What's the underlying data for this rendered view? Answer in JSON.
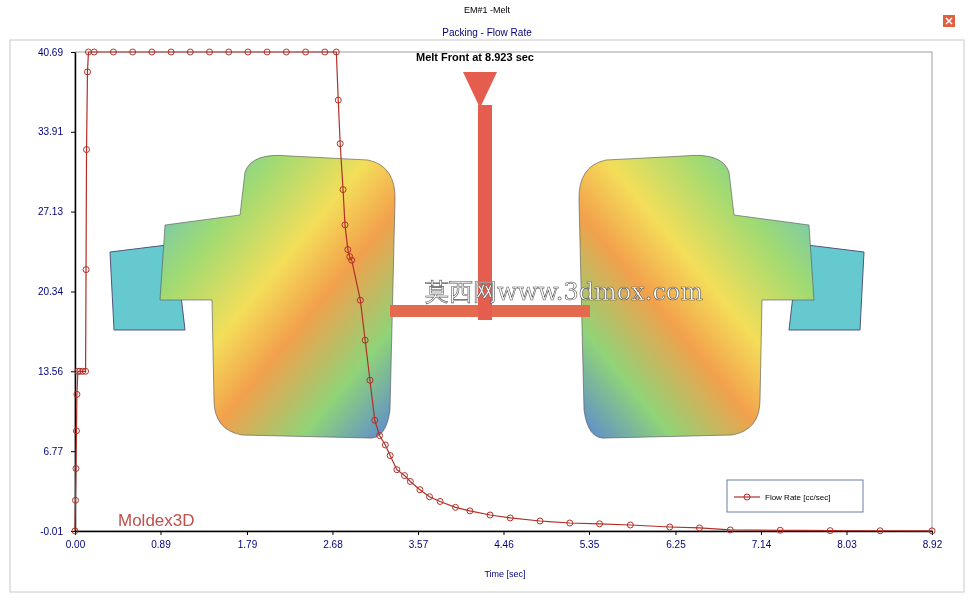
{
  "chart_data": {
    "type": "line",
    "subtitle": "EM#1 -Melt",
    "title": "Packing - Flow Rate",
    "x_label": "Time [sec]",
    "annotations": [
      "Melt Front at 8.923 sec",
      "Moldex3D",
      "莫西网www.3dmox.com"
    ],
    "x": [
      0.0,
      0.005,
      0.01,
      0.015,
      0.02,
      0.03,
      0.05,
      0.08,
      0.11,
      0.115,
      0.12,
      0.13,
      0.14,
      0.2,
      0.4,
      0.6,
      0.8,
      1.0,
      1.2,
      1.4,
      1.6,
      1.8,
      2.0,
      2.2,
      2.4,
      2.6,
      2.72,
      2.74,
      2.76,
      2.79,
      2.81,
      2.84,
      2.86,
      2.88,
      2.97,
      3.02,
      3.07,
      3.12,
      3.17,
      3.23,
      3.28,
      3.35,
      3.43,
      3.49,
      3.59,
      3.69,
      3.8,
      3.96,
      4.11,
      4.32,
      4.53,
      4.84,
      5.15,
      5.46,
      5.78,
      6.19,
      6.5,
      6.82,
      7.34,
      7.86,
      8.38,
      8.92
    ],
    "series": [
      {
        "name": "Flow Rate [cc/sec]",
        "color": "#b03028",
        "marker": "circle",
        "values": [
          0.0,
          2.6,
          5.3,
          8.5,
          11.6,
          13.56,
          13.56,
          13.56,
          13.56,
          22.2,
          32.4,
          39.0,
          40.69,
          40.69,
          40.69,
          40.69,
          40.69,
          40.69,
          40.69,
          40.69,
          40.69,
          40.69,
          40.69,
          40.69,
          40.69,
          40.69,
          40.69,
          36.6,
          32.9,
          29.0,
          26.0,
          23.9,
          23.3,
          23.0,
          19.6,
          16.2,
          12.8,
          9.4,
          8.1,
          7.3,
          6.4,
          5.2,
          4.7,
          4.2,
          3.5,
          2.9,
          2.5,
          2.0,
          1.7,
          1.35,
          1.1,
          0.84,
          0.67,
          0.6,
          0.5,
          0.33,
          0.25,
          0.08,
          0.05,
          0.02,
          0.01,
          0.0
        ]
      }
    ],
    "xlim": [
      0,
      8.92
    ],
    "ylim": [
      -0.01,
      40.69
    ],
    "xticks": [
      {
        "value": 0,
        "label": "0.00"
      },
      0.89,
      1.79,
      2.68,
      3.57,
      4.46,
      5.35,
      6.25,
      7.14,
      8.03,
      8.92
    ],
    "yticks": [
      -0.01,
      6.77,
      13.56,
      20.34,
      27.13,
      33.91,
      40.69
    ],
    "legend": "lower right",
    "grid": false
  }
}
